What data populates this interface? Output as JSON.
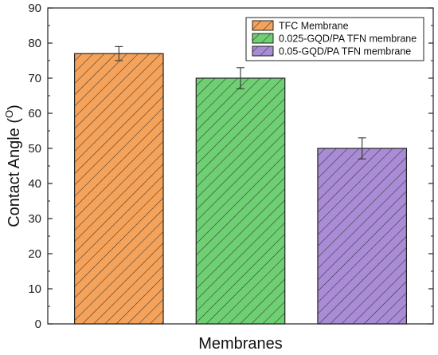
{
  "chart_data": {
    "type": "bar",
    "categories": [
      "TFC Membrane",
      "0.025-GQD/PA TFN membrane",
      "0.05-GQD/PA TFN membrane"
    ],
    "values": [
      77,
      70,
      50
    ],
    "errors": [
      2,
      3,
      3
    ],
    "colors": [
      "#f5a35a",
      "#6fcf73",
      "#a98bd6"
    ],
    "bar_fill_pattern": "diagonal hatching",
    "title": "",
    "xlabel": "Membranes",
    "ylabel_main": "Contact Angle (",
    "ylabel_sup": "O",
    "ylabel_close": ")",
    "ylim": [
      0,
      90
    ],
    "yticks": [
      "0",
      "10",
      "20",
      "30",
      "40",
      "50",
      "60",
      "70",
      "80",
      "90"
    ],
    "legend_position": "top-right"
  }
}
